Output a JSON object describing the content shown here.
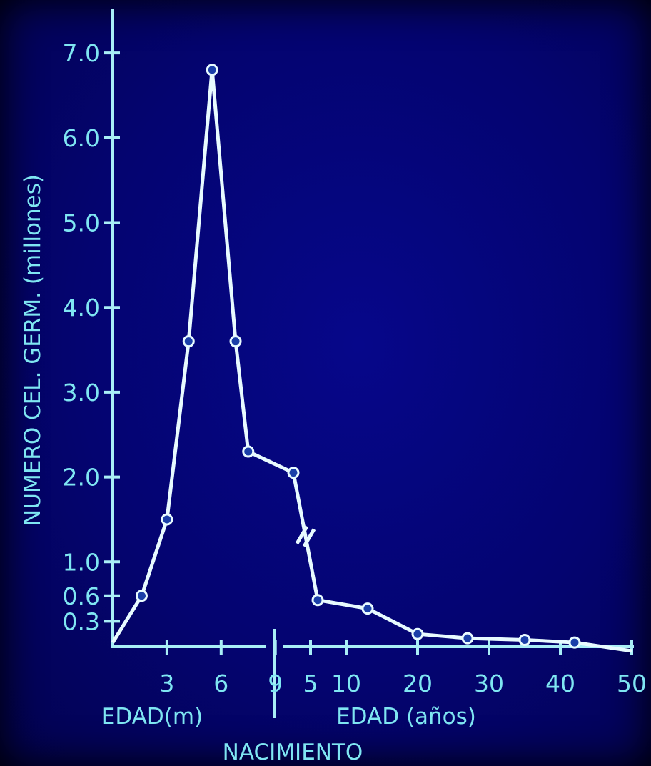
{
  "chart_data": {
    "type": "line",
    "ylabel": "NUMERO CEL. GERM. (millones)",
    "y_ticks": [
      "7.0",
      "6.0",
      "5.0",
      "4.0",
      "3.0",
      "2.0",
      "1.0",
      "0.6",
      "0.3"
    ],
    "ylim": [
      0,
      7.5
    ],
    "left_panel": {
      "xlabel": "EDAD(m)",
      "x_ticks": [
        "3",
        "6",
        "9"
      ],
      "x_range": [
        0,
        9.5
      ],
      "points": [
        {
          "x": 0,
          "y": 0.05
        },
        {
          "x": 1.6,
          "y": 0.6
        },
        {
          "x": 3.0,
          "y": 1.5
        },
        {
          "x": 4.2,
          "y": 3.6
        },
        {
          "x": 5.5,
          "y": 6.8
        },
        {
          "x": 6.8,
          "y": 3.6
        },
        {
          "x": 7.5,
          "y": 2.3
        },
        {
          "x": 10.0,
          "y": 2.05
        }
      ]
    },
    "right_panel": {
      "xlabel": "EDAD (años)",
      "x_ticks": [
        "5",
        "10",
        "20",
        "30",
        "40",
        "50"
      ],
      "x_range": [
        0,
        50
      ],
      "points": [
        {
          "x": 6,
          "y": 0.55
        },
        {
          "x": 13,
          "y": 0.45
        },
        {
          "x": 20,
          "y": 0.15
        },
        {
          "x": 27,
          "y": 0.1
        },
        {
          "x": 35,
          "y": 0.08
        },
        {
          "x": 42,
          "y": 0.05
        },
        {
          "x": 50,
          "y": -0.05
        }
      ]
    },
    "break_label": "NACIMIENTO",
    "colors": {
      "text": "#7fe6f2",
      "line": "#e8fbff",
      "background": "#05067e"
    }
  }
}
